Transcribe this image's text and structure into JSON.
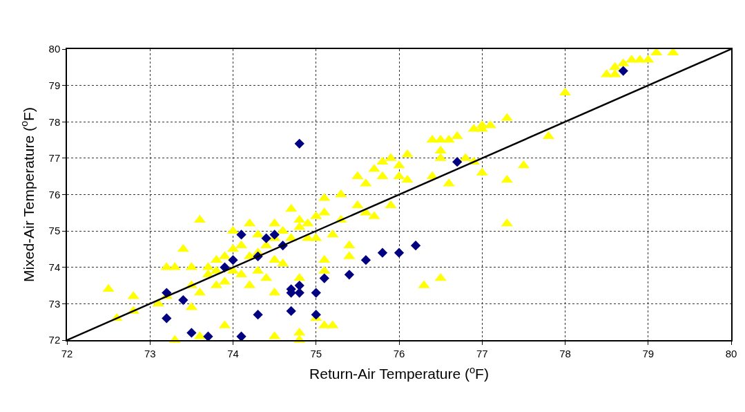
{
  "chart_data": {
    "type": "scatter",
    "xlabel": "Return-Air Temperature ($^{o}$F)",
    "ylabel": "Mixed-Air Temperature ($^{o}$F)",
    "xlim": [
      72,
      80
    ],
    "xticks": [
      72,
      73,
      74,
      75,
      76,
      77,
      78,
      79,
      80
    ],
    "ylim": [
      72,
      80
    ],
    "yticks": [
      72,
      73,
      74,
      75,
      76,
      77,
      78,
      79,
      80
    ],
    "grid": true,
    "legend": false,
    "series": [
      {
        "marker": "triangle",
        "color": "#ffff00",
        "x": [
          72.5,
          72.6,
          72.8,
          72.8,
          73.1,
          73.2,
          73.2,
          73.3,
          73.3,
          73.4,
          73.5,
          73.5,
          73.5,
          73.6,
          73.6,
          73.6,
          73.7,
          73.7,
          73.8,
          73.8,
          73.8,
          73.9,
          73.9,
          73.9,
          74.0,
          74.0,
          74.0,
          74.1,
          74.1,
          74.2,
          74.2,
          74.2,
          74.3,
          74.3,
          74.3,
          74.4,
          74.4,
          74.5,
          74.5,
          74.5,
          74.5,
          74.5,
          74.6,
          74.6,
          74.7,
          74.7,
          74.8,
          74.8,
          74.8,
          74.8,
          74.8,
          74.9,
          74.9,
          75.0,
          75.0,
          75.0,
          75.1,
          75.1,
          75.1,
          75.1,
          75.1,
          75.2,
          75.2,
          75.3,
          75.3,
          75.4,
          75.4,
          75.5,
          75.5,
          75.6,
          75.6,
          75.7,
          75.7,
          75.8,
          75.8,
          75.9,
          75.9,
          76.0,
          76.0,
          76.1,
          76.1,
          76.3,
          76.4,
          76.4,
          76.5,
          76.5,
          76.5,
          76.5,
          76.6,
          76.6,
          76.8,
          76.7,
          76.9,
          76.9,
          77.0,
          77.0,
          77.0,
          77.1,
          77.3,
          77.3,
          77.3,
          77.5,
          77.8,
          78.0,
          78.5,
          78.6,
          78.6,
          78.7,
          78.8,
          78.9,
          79.0,
          79.1,
          79.3
        ],
        "values": [
          73.4,
          72.6,
          73.2,
          72.8,
          73.0,
          74.0,
          73.2,
          74.0,
          72.0,
          74.5,
          73.5,
          72.9,
          74.0,
          75.3,
          73.3,
          72.1,
          73.8,
          74.0,
          74.2,
          73.5,
          73.9,
          74.3,
          73.6,
          72.4,
          75.0,
          74.5,
          73.9,
          74.6,
          73.8,
          75.2,
          74.3,
          73.5,
          74.9,
          74.4,
          73.9,
          74.6,
          73.7,
          75.2,
          74.8,
          74.2,
          73.3,
          72.1,
          75.0,
          74.1,
          75.6,
          74.8,
          75.3,
          75.1,
          73.7,
          72.2,
          72.0,
          75.2,
          74.8,
          75.4,
          74.8,
          72.6,
          75.5,
          74.2,
          73.9,
          72.4,
          75.9,
          74.9,
          72.4,
          76.0,
          75.3,
          74.6,
          74.3,
          76.5,
          75.7,
          76.3,
          75.5,
          76.7,
          75.4,
          76.5,
          76.9,
          77.0,
          75.7,
          76.8,
          76.5,
          77.1,
          76.4,
          73.5,
          77.5,
          76.5,
          77.5,
          77.2,
          77.0,
          73.7,
          76.3,
          77.5,
          77.0,
          77.6,
          77.8,
          76.9,
          77.9,
          76.6,
          77.8,
          77.9,
          78.1,
          76.4,
          75.2,
          76.8,
          77.6,
          78.8,
          79.3,
          79.3,
          79.5,
          79.6,
          79.7,
          79.7,
          79.7,
          79.9,
          79.9
        ]
      },
      {
        "marker": "diamond",
        "color": "#000080",
        "x": [
          73.2,
          73.2,
          73.4,
          73.5,
          73.7,
          74.0,
          74.1,
          74.1,
          74.3,
          74.4,
          74.5,
          74.6,
          74.7,
          74.7,
          74.7,
          74.8,
          74.8,
          74.8,
          75.0,
          75.0,
          75.1,
          75.4,
          75.6,
          75.8,
          76.0,
          76.2,
          76.7,
          78.7,
          74.3,
          73.9
        ],
        "values": [
          73.3,
          72.6,
          73.1,
          72.2,
          72.1,
          74.2,
          74.9,
          72.1,
          72.7,
          74.8,
          74.9,
          74.6,
          73.4,
          73.3,
          72.8,
          73.5,
          73.3,
          77.4,
          73.3,
          72.7,
          73.7,
          73.8,
          74.2,
          74.4,
          74.4,
          74.6,
          76.9,
          79.4,
          74.3,
          74.0
        ]
      },
      {
        "type": "line",
        "marker": "none",
        "line_style": "solid",
        "color": "#000000",
        "x": [
          72,
          80
        ],
        "values": [
          72,
          80
        ]
      }
    ]
  }
}
